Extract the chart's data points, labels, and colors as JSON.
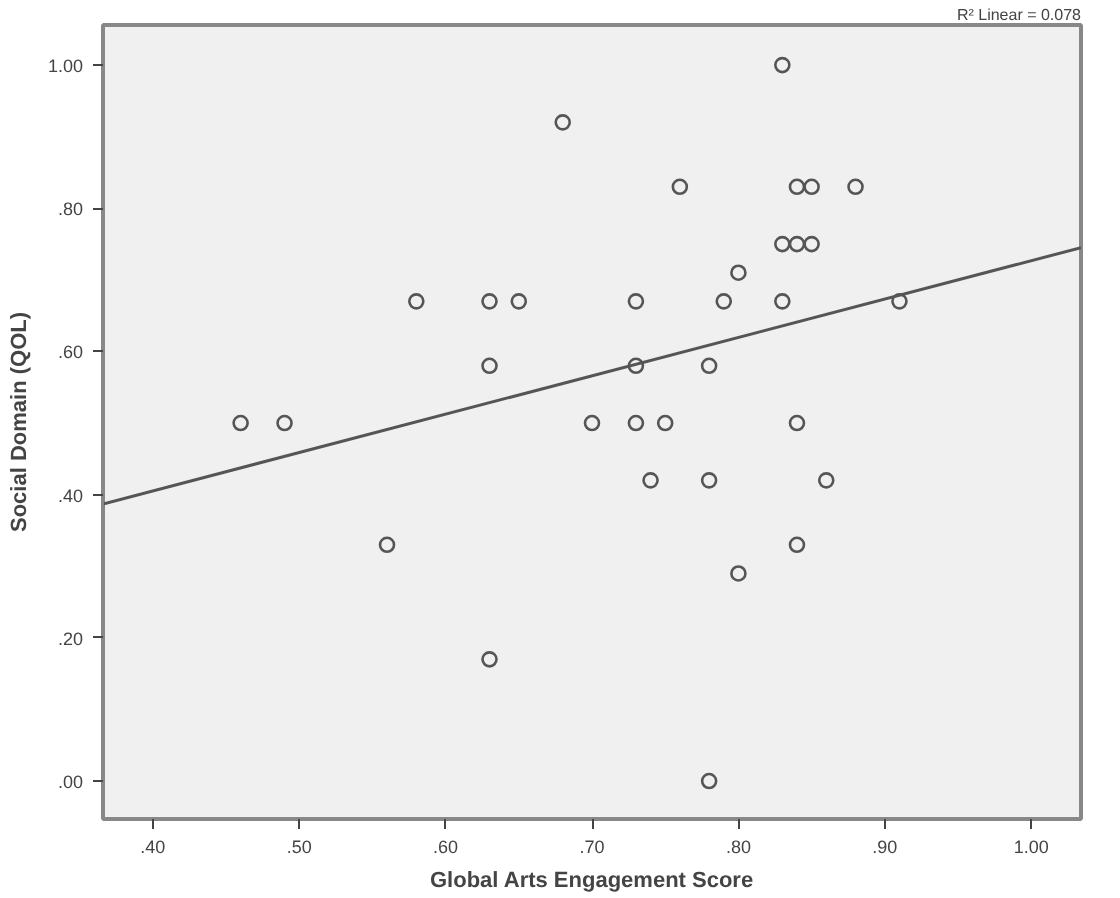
{
  "chart_data": {
    "type": "scatter",
    "xlabel": "Global Arts Engagement Score",
    "ylabel": "Social Domain (QOL)",
    "xlim": [
      0.366,
      1.034
    ],
    "ylim": [
      -0.053,
      1.056
    ],
    "xticks": [
      {
        "value": 0.4,
        "label": ".40"
      },
      {
        "value": 0.5,
        "label": ".50"
      },
      {
        "value": 0.6,
        "label": ".60"
      },
      {
        "value": 0.7,
        "label": ".70"
      },
      {
        "value": 0.8,
        "label": ".80"
      },
      {
        "value": 0.9,
        "label": ".90"
      },
      {
        "value": 1.0,
        "label": "1.00"
      }
    ],
    "yticks": [
      {
        "value": 0.0,
        "label": ".00"
      },
      {
        "value": 0.2,
        "label": ".20"
      },
      {
        "value": 0.4,
        "label": ".40"
      },
      {
        "value": 0.6,
        "label": ".60"
      },
      {
        "value": 0.8,
        "label": ".80"
      },
      {
        "value": 1.0,
        "label": "1.00"
      }
    ],
    "grid": false,
    "series": [
      {
        "marker": "circle",
        "color": "#555555",
        "x": [
          0.68,
          0.58,
          0.63,
          0.65,
          0.73,
          0.63,
          0.73,
          0.46,
          0.49,
          0.7,
          0.73,
          0.75,
          0.84,
          0.83,
          0.76,
          0.84,
          0.85,
          0.88,
          0.83,
          0.84,
          0.85,
          0.8,
          0.79,
          0.83,
          0.91,
          0.78,
          0.56,
          0.63,
          0.74,
          0.78,
          0.86,
          0.84,
          0.8,
          0.78
        ],
        "values": [
          0.92,
          0.67,
          0.67,
          0.67,
          0.67,
          0.58,
          0.58,
          0.5,
          0.5,
          0.5,
          0.5,
          0.5,
          0.5,
          1.0,
          0.83,
          0.83,
          0.83,
          0.83,
          0.75,
          0.75,
          0.75,
          0.71,
          0.67,
          0.67,
          0.67,
          0.58,
          0.33,
          0.17,
          0.42,
          0.42,
          0.42,
          0.33,
          0.29,
          0.0
        ]
      },
      {
        "type": "line",
        "color": "#555555",
        "x": [
          0.366,
          1.034
        ],
        "values": [
          0.387,
          0.745
        ]
      }
    ],
    "annotations": [
      "R² Linear = 0.078"
    ]
  }
}
